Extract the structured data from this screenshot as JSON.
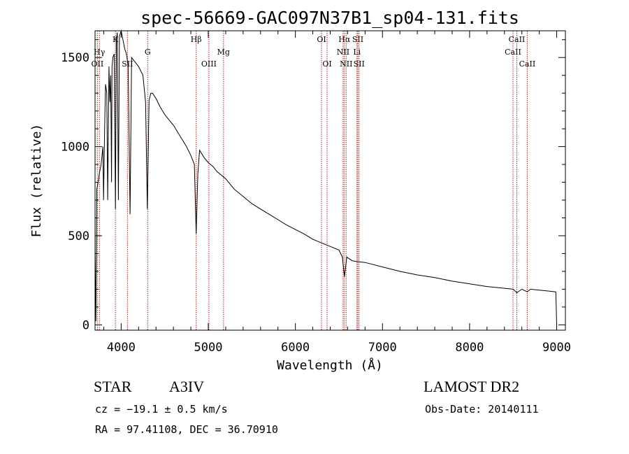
{
  "chart_data": {
    "type": "line",
    "title": "spec-56669-GAC097N37B1_sp04-131.fits",
    "xlabel": "Wavelength (Å)",
    "ylabel": "Flux (relative)",
    "xlim": [
      3700,
      9100
    ],
    "ylim": [
      -30,
      1650
    ],
    "xticks": [
      4000,
      5000,
      6000,
      7000,
      8000,
      9000
    ],
    "yticks": [
      0,
      500,
      1000,
      1500
    ],
    "grid": false,
    "series": [
      {
        "x": [
          3700,
          3710,
          3720,
          3735,
          3750,
          3770,
          3790,
          3798,
          3810,
          3820,
          3835,
          3845,
          3860,
          3870,
          3880,
          3889,
          3895,
          3905,
          3920,
          3934,
          3945,
          3955,
          3968,
          3980,
          4000,
          4020,
          4040,
          4060,
          4080,
          4102,
          4120,
          4150,
          4200,
          4250,
          4280,
          4300,
          4320,
          4340,
          4360,
          4400,
          4450,
          4500,
          4550,
          4600,
          4650,
          4700,
          4750,
          4800,
          4840,
          4861,
          4880,
          4900,
          4950,
          5000,
          5050,
          5100,
          5200,
          5300,
          5400,
          5500,
          5600,
          5700,
          5800,
          5900,
          6000,
          6100,
          6200,
          6300,
          6400,
          6500,
          6540,
          6563,
          6590,
          6650,
          6700,
          6800,
          7000,
          7200,
          7400,
          7600,
          7800,
          8000,
          8200,
          8400,
          8500,
          8542,
          8600,
          8662,
          8700,
          8800,
          8900,
          8990,
          9000
        ],
        "y": [
          400,
          20,
          760,
          800,
          850,
          900,
          1000,
          700,
          1100,
          1350,
          1300,
          700,
          1450,
          1250,
          1400,
          800,
          1450,
          1500,
          1520,
          650,
          1600,
          1640,
          700,
          1620,
          1650,
          1600,
          1550,
          1520,
          1450,
          620,
          1500,
          1480,
          1450,
          1400,
          1250,
          650,
          1260,
          1300,
          1300,
          1270,
          1220,
          1180,
          1150,
          1120,
          1080,
          1040,
          1000,
          950,
          900,
          510,
          850,
          980,
          940,
          910,
          890,
          860,
          820,
          760,
          720,
          680,
          650,
          620,
          590,
          560,
          535,
          510,
          480,
          460,
          440,
          420,
          380,
          270,
          380,
          360,
          355,
          350,
          325,
          300,
          280,
          265,
          245,
          230,
          215,
          205,
          200,
          180,
          200,
          185,
          200,
          195,
          190,
          185,
          0
        ]
      }
    ],
    "spectral_lines": [
      {
        "label": "OII",
        "wavelength": 3727,
        "tier": 2
      },
      {
        "label": "Hγ",
        "wavelength": 3750,
        "tier": 1
      },
      {
        "label": "K",
        "wavelength": 3934,
        "tier": 0
      },
      {
        "label": "SII",
        "wavelength": 4072,
        "tier": 2
      },
      {
        "label": "G",
        "wavelength": 4304,
        "tier": 1
      },
      {
        "label": "Hβ",
        "wavelength": 4861,
        "tier": 0
      },
      {
        "label": "OIII",
        "wavelength": 5007,
        "tier": 2
      },
      {
        "label": "Mg",
        "wavelength": 5175,
        "tier": 1
      },
      {
        "label": "OI",
        "wavelength": 6300,
        "tier": 0
      },
      {
        "label": "OI",
        "wavelength": 6364,
        "tier": 2
      },
      {
        "label": "Hα",
        "wavelength": 6563,
        "tier": 0
      },
      {
        "label": "NII",
        "wavelength": 6548,
        "tier": 1
      },
      {
        "label": "NII",
        "wavelength": 6583,
        "tier": 2
      },
      {
        "label": "SII",
        "wavelength": 6717,
        "tier": 0
      },
      {
        "label": "Li",
        "wavelength": 6707,
        "tier": 1
      },
      {
        "label": "SII",
        "wavelength": 6731,
        "tier": 2
      },
      {
        "label": "CaII",
        "wavelength": 8542,
        "tier": 0
      },
      {
        "label": "CaII",
        "wavelength": 8498,
        "tier": 1
      },
      {
        "label": "CaII",
        "wavelength": 8662,
        "tier": 2
      }
    ]
  },
  "info": {
    "object_class": "STAR",
    "subclass": "A3IV",
    "survey": "LAMOST DR2",
    "velocity": "cz = −19.1 ± 0.5 km/s",
    "obs_date": "Obs-Date: 20140111",
    "coordinates": "RA =  97.41108, DEC =  36.70910"
  },
  "colors": {
    "spectrum": "#000000",
    "line_markers": "#b22222",
    "axes": "#000000"
  }
}
